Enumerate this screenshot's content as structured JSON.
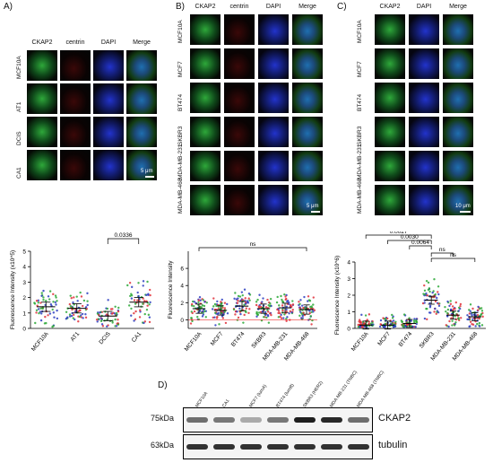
{
  "panels": {
    "A": {
      "letter": "A)",
      "headers": [
        "CKAP2",
        "centrin",
        "DAPI",
        "Merge"
      ],
      "rows": [
        "MCF10A",
        "AT1",
        "DCIS",
        "CA1"
      ],
      "scale_bar": "5 μm"
    },
    "B": {
      "letter": "B)",
      "headers": [
        "CKAP2",
        "centrin",
        "DAPI",
        "Merge"
      ],
      "rows": [
        "MCF10A",
        "MCF7",
        "BT474",
        "SKBR3",
        "MDA-MB-231",
        "MDA-MB-468"
      ],
      "scale_bar": "5 μm"
    },
    "C": {
      "letter": "C)",
      "headers": [
        "CKAP2",
        "DAPI",
        "Merge"
      ],
      "rows": [
        "MCF10A",
        "MCF7",
        "BT474",
        "SKBR3",
        "MDA-MB-231",
        "MDA-MB-468"
      ],
      "scale_bar": "10 μm"
    },
    "D": {
      "letter": "D)",
      "lanes": [
        "MCF10A",
        "CA1",
        "MCF7 (lumA)",
        "BT474 (lumB)",
        "SKBR3 (HER2)",
        "MDA-MB-231 (TNBC)",
        "MDA-MB-468 (TNBC)"
      ],
      "bands": [
        {
          "mw": "75kDa",
          "label": "CKAP2",
          "intensity": [
            0.55,
            0.5,
            0.25,
            0.5,
            0.95,
            0.9,
            0.55
          ]
        },
        {
          "mw": "63kDa",
          "label": "tubulin",
          "intensity": [
            0.85,
            0.85,
            0.85,
            0.85,
            0.85,
            0.85,
            0.85
          ]
        }
      ]
    }
  },
  "chart_data": [
    {
      "type": "scatter",
      "ylabel": "Fluorescence Intensity (x10^5)",
      "categories": [
        "MCF10A",
        "AT1",
        "DCIS",
        "CA1"
      ],
      "ylim": [
        0,
        5
      ],
      "yticks": [
        0,
        1,
        2,
        3,
        4,
        5
      ],
      "means": [
        1.4,
        1.3,
        0.8,
        1.7
      ],
      "annotations": [
        {
          "between": [
            "DCIS",
            "CA1"
          ],
          "text": "0.0336"
        }
      ]
    },
    {
      "type": "scatter",
      "ylabel": "Fluorescence Intensity",
      "categories": [
        "MCF10A",
        "MCF7",
        "BT474",
        "SKBR3",
        "MDA-MB-231",
        "MDA-MB-468"
      ],
      "ylim": [
        -1,
        8
      ],
      "yticks": [
        0,
        2,
        4,
        6
      ],
      "means": [
        1.3,
        1.1,
        1.6,
        1.3,
        1.4,
        1.2
      ],
      "annotations": [
        {
          "between": [
            "MCF10A",
            "MDA-MB-468"
          ],
          "text": "ns"
        }
      ]
    },
    {
      "type": "scatter",
      "ylabel": "Fluorescence Intensity (x10^6)",
      "categories": [
        "MCF10A",
        "MCF7",
        "BT474",
        "SKBR3",
        "MDA-MB-231",
        "MDA-MB-468"
      ],
      "ylim": [
        0,
        4
      ],
      "yticks": [
        0,
        1,
        2,
        3,
        4
      ],
      "means": [
        0.2,
        0.2,
        0.3,
        1.7,
        0.8,
        0.7
      ],
      "annotations": [
        {
          "between": [
            "MCF10A",
            "SKBR3"
          ],
          "text": "0.0027"
        },
        {
          "between": [
            "MCF7",
            "SKBR3"
          ],
          "text": "0.0030"
        },
        {
          "between": [
            "BT474",
            "SKBR3"
          ],
          "text": "0.0064"
        },
        {
          "between": [
            "SKBR3",
            "MDA-MB-231"
          ],
          "text": "ns"
        },
        {
          "between": [
            "SKBR3",
            "MDA-MB-468"
          ],
          "text": "ns"
        }
      ]
    }
  ]
}
